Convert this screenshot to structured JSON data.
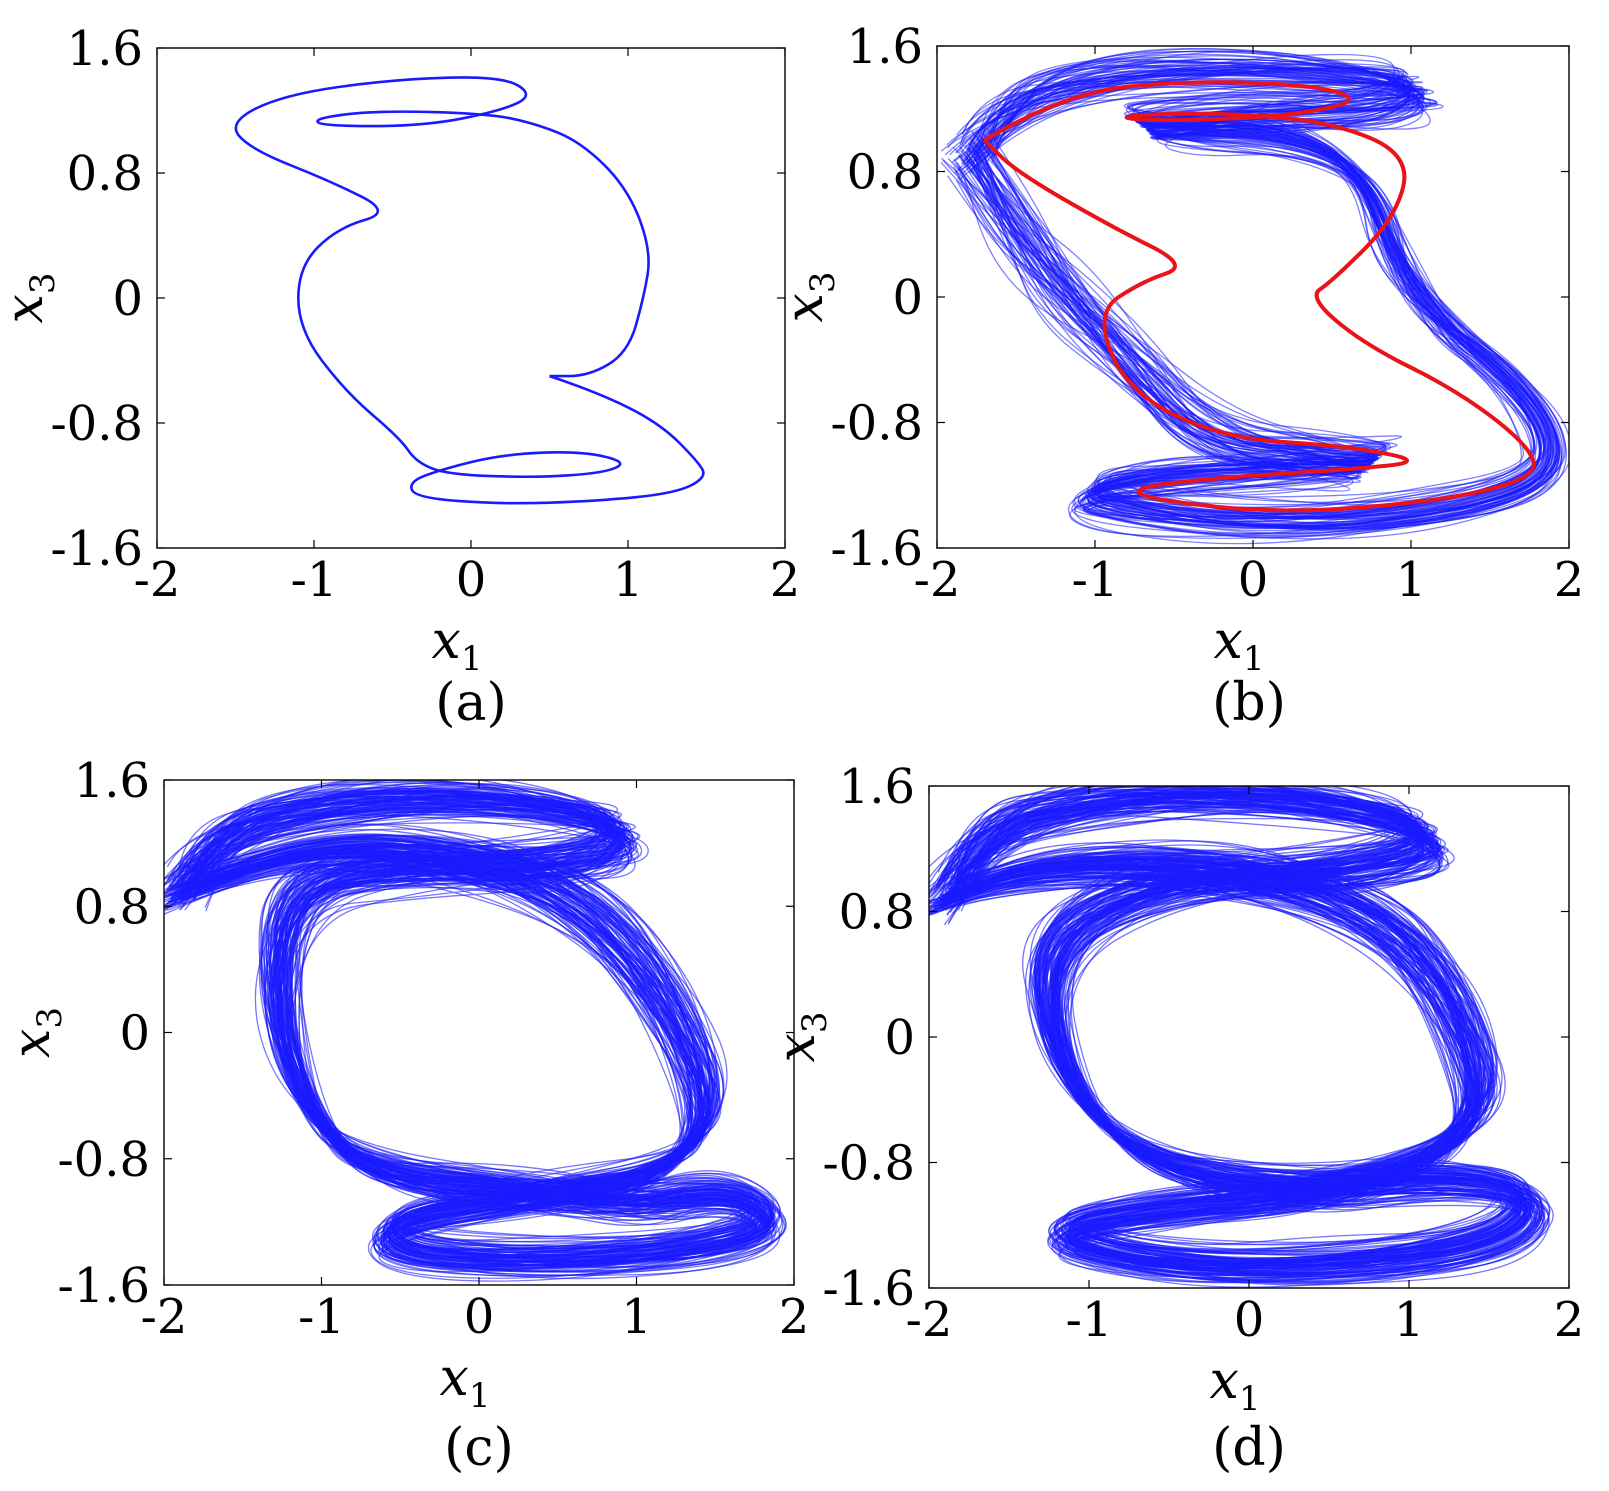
{
  "figure": {
    "panels": [
      {
        "id": "a",
        "caption": "(a)",
        "xlabel": "x",
        "xlabel_sub": "1",
        "ylabel": "x",
        "ylabel_sub": "3"
      },
      {
        "id": "b",
        "caption": "(b)",
        "xlabel": "x",
        "xlabel_sub": "1",
        "ylabel": "x",
        "ylabel_sub": "3"
      },
      {
        "id": "c",
        "caption": "(c)",
        "xlabel": "x",
        "xlabel_sub": "1",
        "ylabel": "x",
        "ylabel_sub": "3"
      },
      {
        "id": "d",
        "caption": "(d)",
        "xlabel": "x",
        "xlabel_sub": "1",
        "ylabel": "x",
        "ylabel_sub": "3"
      }
    ]
  },
  "colors": {
    "trajectory": "#1a1aff",
    "highlight": "#e8141a",
    "axis": "#000000"
  },
  "chart_data": [
    {
      "panel": "a",
      "type": "line",
      "xlim": [
        -2,
        2
      ],
      "ylim": [
        -1.6,
        1.6
      ],
      "xticks": [
        "-2",
        "-1",
        "0",
        "1",
        "2"
      ],
      "yticks": [
        "1.6",
        "0.8",
        "0",
        "-0.8",
        "-1.6"
      ],
      "grid": false,
      "series": [
        {
          "style": "periodic orbit",
          "color": "#1a1aff",
          "points": [
            [
              0.5,
              -0.5
            ],
            [
              0.8,
              -0.6
            ],
            [
              1.2,
              -0.8
            ],
            [
              1.45,
              -1.05
            ],
            [
              1.5,
              -1.15
            ],
            [
              1.3,
              -1.25
            ],
            [
              0.8,
              -1.3
            ],
            [
              0.2,
              -1.32
            ],
            [
              -0.35,
              -1.28
            ],
            [
              -0.4,
              -1.18
            ],
            [
              -0.2,
              -1.1
            ],
            [
              0.2,
              -1.0
            ],
            [
              0.7,
              -0.98
            ],
            [
              1.0,
              -1.05
            ],
            [
              0.85,
              -1.12
            ],
            [
              0.4,
              -1.15
            ],
            [
              -0.15,
              -1.13
            ],
            [
              -0.35,
              -1.05
            ],
            [
              -0.45,
              -0.9
            ],
            [
              -0.8,
              -0.6
            ],
            [
              -1.1,
              -0.2
            ],
            [
              -1.1,
              0.2
            ],
            [
              -0.85,
              0.45
            ],
            [
              -0.5,
              0.55
            ],
            [
              -0.9,
              0.75
            ],
            [
              -1.4,
              0.95
            ],
            [
              -1.55,
              1.12
            ],
            [
              -1.2,
              1.3
            ],
            [
              -0.5,
              1.4
            ],
            [
              0.2,
              1.42
            ],
            [
              0.4,
              1.3
            ],
            [
              0.2,
              1.2
            ],
            [
              -0.3,
              1.1
            ],
            [
              -0.95,
              1.1
            ],
            [
              -1.0,
              1.15
            ],
            [
              -0.6,
              1.2
            ],
            [
              0.1,
              1.18
            ],
            [
              0.4,
              1.12
            ],
            [
              0.7,
              1.0
            ],
            [
              1.0,
              0.7
            ],
            [
              1.15,
              0.3
            ],
            [
              1.1,
              0.0
            ],
            [
              1.0,
              -0.35
            ],
            [
              0.75,
              -0.5
            ],
            [
              0.5,
              -0.5
            ]
          ]
        }
      ]
    },
    {
      "panel": "b",
      "type": "line",
      "xlim": [
        -2,
        2
      ],
      "ylim": [
        -1.6,
        1.6
      ],
      "xticks": [
        "-2",
        "-1",
        "0",
        "1",
        "2"
      ],
      "yticks": [
        "1.6",
        "0.8",
        "0",
        "-0.8",
        "-1.6"
      ],
      "grid": false,
      "series": [
        {
          "style": "chaotic attractor",
          "color": "#1a1aff",
          "strands": 70,
          "opacity": 0.55,
          "points": [
            [
              -1.8,
              0.9
            ],
            [
              -1.6,
              1.2
            ],
            [
              -1.0,
              1.4
            ],
            [
              0.0,
              1.45
            ],
            [
              0.9,
              1.4
            ],
            [
              1.1,
              1.3
            ],
            [
              0.7,
              1.2
            ],
            [
              0.0,
              1.18
            ],
            [
              -0.8,
              1.1
            ],
            [
              -0.5,
              1.05
            ],
            [
              0.2,
              1.03
            ],
            [
              0.7,
              0.8
            ],
            [
              0.9,
              0.2
            ],
            [
              1.2,
              -0.2
            ],
            [
              1.6,
              -0.5
            ],
            [
              1.9,
              -0.9
            ],
            [
              1.8,
              -1.2
            ],
            [
              1.0,
              -1.4
            ],
            [
              0.0,
              -1.45
            ],
            [
              -0.9,
              -1.35
            ],
            [
              -1.1,
              -1.25
            ],
            [
              -0.6,
              -1.15
            ],
            [
              0.3,
              -1.1
            ],
            [
              0.9,
              -1.05
            ],
            [
              0.4,
              -1.0
            ],
            [
              -0.3,
              -0.9
            ],
            [
              -0.8,
              -0.4
            ],
            [
              -1.2,
              0.0
            ],
            [
              -1.5,
              0.4
            ],
            [
              -1.8,
              0.9
            ]
          ]
        },
        {
          "style": "periodic orbit",
          "color": "#e8141a",
          "points": [
            [
              -1.7,
              1.0
            ],
            [
              -1.2,
              1.3
            ],
            [
              -0.4,
              1.38
            ],
            [
              0.4,
              1.35
            ],
            [
              0.7,
              1.25
            ],
            [
              0.2,
              1.15
            ],
            [
              -0.6,
              1.12
            ],
            [
              -0.9,
              1.15
            ],
            [
              -0.3,
              1.18
            ],
            [
              0.5,
              1.12
            ],
            [
              1.0,
              0.9
            ],
            [
              0.9,
              0.5
            ],
            [
              0.5,
              0.1
            ],
            [
              0.35,
              0.0
            ],
            [
              0.7,
              -0.3
            ],
            [
              1.3,
              -0.6
            ],
            [
              1.75,
              -0.95
            ],
            [
              1.8,
              -1.15
            ],
            [
              1.2,
              -1.3
            ],
            [
              0.2,
              -1.38
            ],
            [
              -0.6,
              -1.3
            ],
            [
              -0.8,
              -1.22
            ],
            [
              -0.2,
              -1.15
            ],
            [
              0.6,
              -1.1
            ],
            [
              1.1,
              -1.05
            ],
            [
              0.6,
              -0.95
            ],
            [
              -0.2,
              -0.9
            ],
            [
              -0.8,
              -0.6
            ],
            [
              -1.0,
              -0.1
            ],
            [
              -0.7,
              0.1
            ],
            [
              -0.4,
              0.2
            ],
            [
              -0.9,
              0.45
            ],
            [
              -1.5,
              0.8
            ],
            [
              -1.7,
              1.0
            ]
          ]
        }
      ]
    },
    {
      "panel": "c",
      "type": "line",
      "xlim": [
        -2,
        2
      ],
      "ylim": [
        -1.6,
        1.6
      ],
      "xticks": [
        "-2",
        "-1",
        "0",
        "1",
        "2"
      ],
      "yticks": [
        "1.6",
        "0.8",
        "0",
        "-0.8",
        "-1.6"
      ],
      "grid": false,
      "series": [
        {
          "style": "chaotic attractor",
          "color": "#1a1aff",
          "strands": 110,
          "opacity": 0.6,
          "points": [
            [
              -1.9,
              0.9
            ],
            [
              -1.7,
              1.25
            ],
            [
              -1.0,
              1.45
            ],
            [
              0.0,
              1.5
            ],
            [
              0.9,
              1.35
            ],
            [
              0.9,
              1.15
            ],
            [
              0.3,
              1.05
            ],
            [
              -0.6,
              1.05
            ],
            [
              -1.2,
              0.9
            ],
            [
              -1.3,
              0.2
            ],
            [
              -1.1,
              -0.5
            ],
            [
              -0.7,
              -0.9
            ],
            [
              0.3,
              -1.0
            ],
            [
              1.0,
              -1.1
            ],
            [
              1.6,
              -1.0
            ],
            [
              1.9,
              -1.2
            ],
            [
              1.5,
              -1.35
            ],
            [
              0.5,
              -1.45
            ],
            [
              -0.5,
              -1.4
            ],
            [
              -0.6,
              -1.2
            ],
            [
              0.3,
              -1.05
            ],
            [
              1.2,
              -0.9
            ],
            [
              1.5,
              -0.5
            ],
            [
              1.2,
              0.2
            ],
            [
              0.7,
              0.8
            ],
            [
              0.0,
              1.1
            ],
            [
              -1.0,
              1.2
            ],
            [
              -1.9,
              0.9
            ]
          ]
        }
      ]
    },
    {
      "panel": "d",
      "type": "line",
      "xlim": [
        -2,
        2
      ],
      "ylim": [
        -1.6,
        1.6
      ],
      "xticks": [
        "-2",
        "-1",
        "0",
        "1",
        "2"
      ],
      "yticks": [
        "1.6",
        "0.8",
        "0",
        "-0.8",
        "-1.6"
      ],
      "grid": false,
      "series": [
        {
          "style": "chaotic attractor",
          "color": "#1a1aff",
          "strands": 120,
          "opacity": 0.6,
          "points": [
            [
              -1.9,
              0.9
            ],
            [
              -1.7,
              1.3
            ],
            [
              -1.0,
              1.5
            ],
            [
              0.0,
              1.55
            ],
            [
              1.0,
              1.4
            ],
            [
              1.2,
              1.2
            ],
            [
              0.5,
              1.05
            ],
            [
              -0.6,
              1.0
            ],
            [
              -1.3,
              0.6
            ],
            [
              -1.2,
              -0.2
            ],
            [
              -0.7,
              -0.8
            ],
            [
              0.3,
              -1.0
            ],
            [
              1.2,
              -0.9
            ],
            [
              1.8,
              -1.0
            ],
            [
              1.6,
              -1.3
            ],
            [
              0.6,
              -1.45
            ],
            [
              -0.5,
              -1.45
            ],
            [
              -1.3,
              -1.25
            ],
            [
              -0.6,
              -1.1
            ],
            [
              0.6,
              -1.0
            ],
            [
              1.5,
              -0.6
            ],
            [
              1.3,
              0.2
            ],
            [
              0.8,
              0.8
            ],
            [
              -0.2,
              1.1
            ],
            [
              -1.3,
              1.1
            ],
            [
              -1.9,
              0.9
            ]
          ]
        }
      ]
    }
  ]
}
